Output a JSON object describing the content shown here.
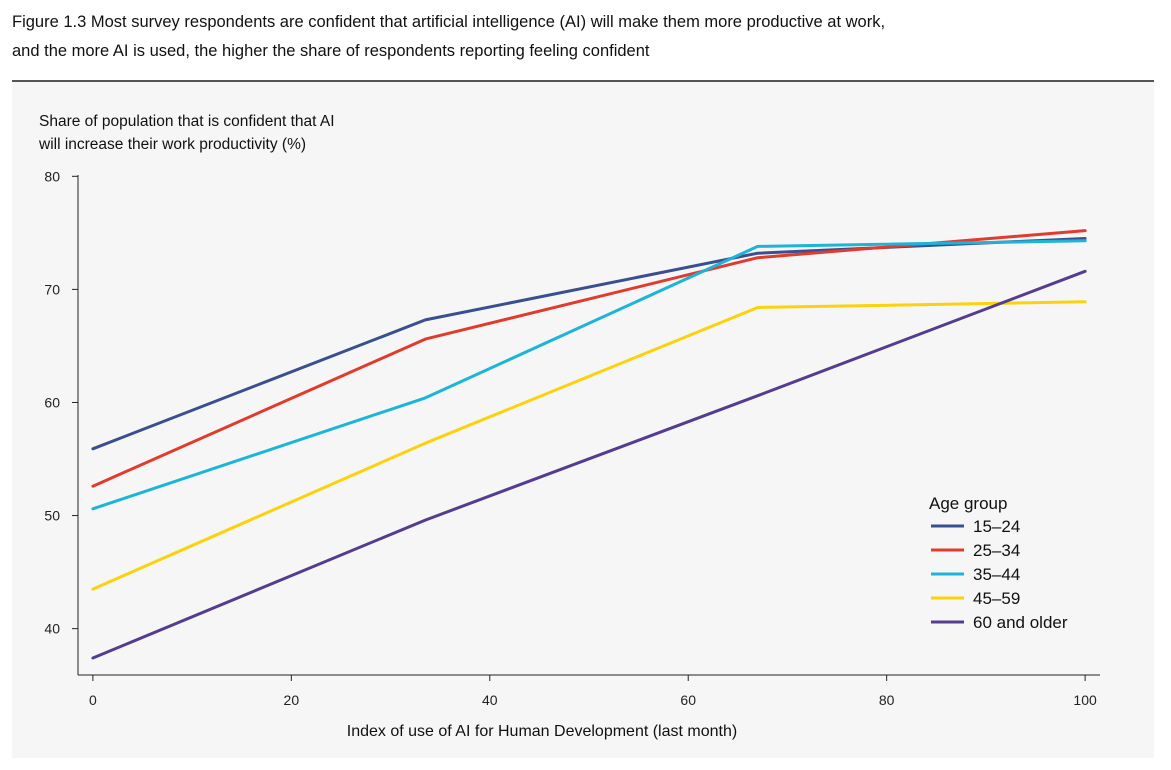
{
  "figure": {
    "title_line1": "Figure 1.3  Most survey respondents are confident that artificial intelligence (AI) will make them more productive at work,",
    "title_line2": "and the more AI is used, the higher the share of respondents reporting feeling confident"
  },
  "chart_data": {
    "type": "line",
    "ylabel_line1": "Share of population that is confident that AI",
    "ylabel_line2": "will increase their work productivity (%)",
    "xlabel": "Index of use of AI for Human Development (last month)",
    "xlim": [
      -1.5,
      101.5
    ],
    "ylim": [
      35.9,
      81
    ],
    "xticks": [
      0,
      20,
      40,
      60,
      80,
      100
    ],
    "yticks": [
      40,
      50,
      60,
      70,
      80
    ],
    "grid": false,
    "legend": {
      "title": "Age group",
      "placement": "right"
    },
    "x": [
      0,
      33.5,
      67,
      100
    ],
    "series": [
      {
        "name": "15–24",
        "color": "#3a4f8f",
        "values": [
          55.9,
          67.3,
          73.2,
          74.5
        ]
      },
      {
        "name": "25–34",
        "color": "#e03c2e",
        "values": [
          52.6,
          65.6,
          72.8,
          75.2
        ]
      },
      {
        "name": "35–44",
        "color": "#1db4d8",
        "values": [
          50.6,
          60.4,
          73.8,
          74.3
        ]
      },
      {
        "name": "45–59",
        "color": "#fbd20c",
        "values": [
          43.5,
          56.4,
          68.4,
          68.9
        ]
      },
      {
        "name": "60 and older",
        "color": "#553c8f",
        "values": [
          37.4,
          49.6,
          60.6,
          71.6
        ]
      }
    ]
  }
}
